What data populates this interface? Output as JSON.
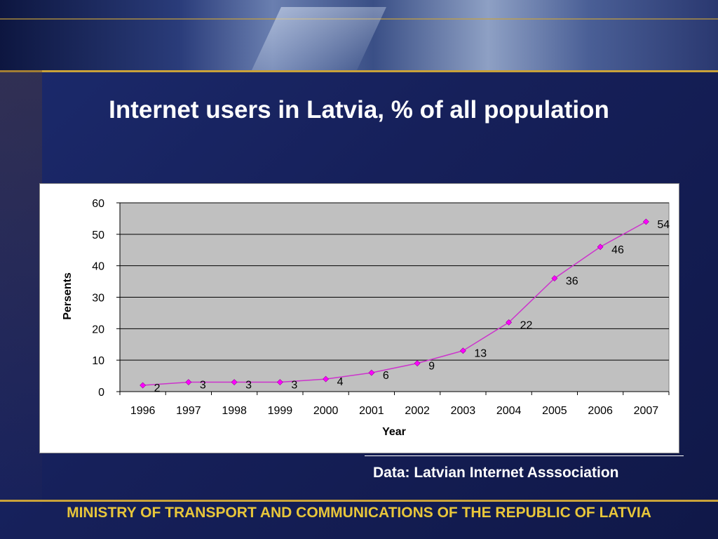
{
  "title": "Internet users in Latvia, % of all population",
  "source": "Data: Latvian Internet Asssociation",
  "footer": "MINISTRY OF TRANSPORT AND COMMUNICATIONS OF THE REPUBLIC OF LATVIA",
  "colors": {
    "background": "#1c2b6e",
    "plot_area": "#c0c0c0",
    "line": "#cc33cc",
    "marker": "#ff00ff",
    "footer_text": "#e8c63a"
  },
  "chart_data": {
    "type": "line",
    "title": "",
    "xlabel": "Year",
    "ylabel": "Persents",
    "categories": [
      "1996",
      "1997",
      "1998",
      "1999",
      "2000",
      "2001",
      "2002",
      "2003",
      "2004",
      "2005",
      "2006",
      "2007"
    ],
    "series": [
      {
        "values": [
          2,
          3,
          3,
          3,
          4,
          6,
          9,
          13,
          22,
          36,
          46,
          54
        ]
      }
    ],
    "data_labels": [
      "2",
      "3",
      "3",
      "3",
      "4",
      "6",
      "9",
      "13",
      "22",
      "36",
      "46",
      "54"
    ],
    "ylim": [
      0,
      60
    ],
    "yticks": [
      "0",
      "10",
      "20",
      "30",
      "40",
      "50",
      "60"
    ],
    "grid": "horizontal",
    "legend": "none"
  }
}
